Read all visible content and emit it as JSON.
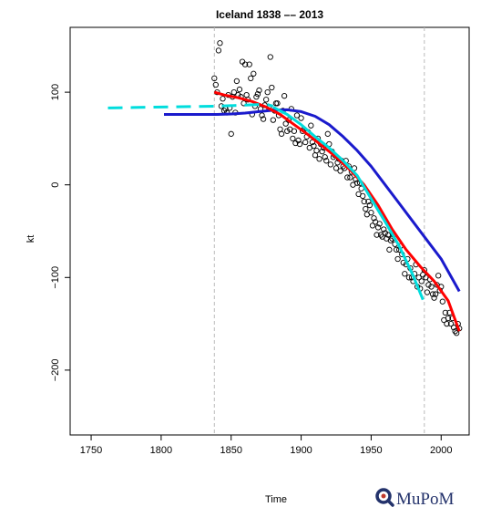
{
  "chart_data": {
    "type": "scatter",
    "title": "Iceland 1838 –– 2013",
    "xlabel": "Time",
    "ylabel": "kt",
    "xlim": [
      1735,
      2020
    ],
    "ylim": [
      -270,
      170
    ],
    "x_ticks": [
      1750,
      1800,
      1850,
      1900,
      1950,
      2000
    ],
    "y_ticks": [
      100,
      0,
      -100,
      -200
    ],
    "grid": false,
    "vlines": [
      1838,
      1988
    ],
    "series": [
      {
        "kind": "points",
        "color": "#000000",
        "x": [
          1838,
          1839,
          1840,
          1841,
          1842,
          1843,
          1844,
          1845,
          1846,
          1847,
          1848,
          1849,
          1850,
          1851,
          1852,
          1853,
          1854,
          1855,
          1856,
          1857,
          1858,
          1859,
          1860,
          1861,
          1862,
          1863,
          1864,
          1865,
          1866,
          1867,
          1868,
          1869,
          1870,
          1871,
          1872,
          1873,
          1874,
          1875,
          1876,
          1877,
          1878,
          1879,
          1880,
          1881,
          1882,
          1883,
          1884,
          1885,
          1886,
          1887,
          1888,
          1889,
          1890,
          1891,
          1892,
          1893,
          1894,
          1895,
          1896,
          1897,
          1898,
          1899,
          1900,
          1901,
          1902,
          1903,
          1904,
          1905,
          1906,
          1907,
          1908,
          1909,
          1910,
          1911,
          1912,
          1913,
          1914,
          1915,
          1916,
          1917,
          1918,
          1919,
          1920,
          1921,
          1922,
          1923,
          1924,
          1925,
          1926,
          1927,
          1928,
          1929,
          1930,
          1931,
          1932,
          1933,
          1934,
          1935,
          1936,
          1937,
          1938,
          1939,
          1940,
          1941,
          1942,
          1943,
          1944,
          1945,
          1946,
          1947,
          1948,
          1949,
          1950,
          1951,
          1952,
          1953,
          1954,
          1955,
          1956,
          1957,
          1958,
          1959,
          1960,
          1961,
          1962,
          1963,
          1964,
          1965,
          1966,
          1967,
          1968,
          1969,
          1970,
          1971,
          1972,
          1973,
          1974,
          1975,
          1976,
          1977,
          1978,
          1979,
          1980,
          1981,
          1982,
          1983,
          1984,
          1985,
          1986,
          1987,
          1988,
          1989,
          1990,
          1991,
          1992,
          1993,
          1994,
          1995,
          1996,
          1997,
          1998,
          1999,
          2000,
          2001,
          2002,
          2003,
          2004,
          2005,
          2006,
          2007,
          2008,
          2009,
          2010,
          2011,
          2012,
          2013
        ],
        "y": [
          115,
          108,
          100,
          145,
          153,
          85,
          93,
          80,
          82,
          78,
          97,
          83,
          55,
          95,
          100,
          78,
          112,
          97,
          103,
          95,
          133,
          88,
          130,
          97,
          92,
          130,
          115,
          76,
          120,
          85,
          95,
          98,
          102,
          82,
          75,
          71,
          86,
          92,
          100,
          83,
          138,
          105,
          70,
          80,
          88,
          88,
          75,
          60,
          55,
          80,
          96,
          66,
          58,
          70,
          60,
          82,
          50,
          58,
          45,
          75,
          48,
          44,
          72,
          58,
          60,
          46,
          52,
          57,
          40,
          64,
          46,
          42,
          32,
          37,
          50,
          28,
          44,
          36,
          40,
          30,
          26,
          55,
          44,
          22,
          36,
          30,
          32,
          18,
          24,
          28,
          15,
          26,
          20,
          18,
          26,
          8,
          20,
          8,
          14,
          0,
          18,
          6,
          2,
          -10,
          2,
          -4,
          -12,
          -18,
          -26,
          -32,
          -18,
          -22,
          -30,
          -44,
          -36,
          -40,
          -54,
          -46,
          -42,
          -54,
          -56,
          -48,
          -52,
          -58,
          -54,
          -70,
          -60,
          -58,
          -54,
          -64,
          -70,
          -80,
          -70,
          -66,
          -75,
          -84,
          -96,
          -86,
          -80,
          -100,
          -90,
          -100,
          -104,
          -96,
          -86,
          -110,
          -100,
          -112,
          -104,
          -97,
          -92,
          -100,
          -116,
          -108,
          -102,
          -110,
          -118,
          -122,
          -118,
          -108,
          -98,
          -114,
          -110,
          -126,
          -146,
          -138,
          -150,
          -144,
          -138,
          -150,
          -144,
          -154,
          -158,
          -160,
          -150,
          -155
        ]
      },
      {
        "kind": "line",
        "color": "#1a1acc",
        "x": [
          1802,
          1810,
          1820,
          1830,
          1840,
          1850,
          1860,
          1870,
          1880,
          1890,
          1900,
          1910,
          1920,
          1930,
          1940,
          1950,
          1960,
          1970,
          1980,
          1990,
          2000,
          2013
        ],
        "y": [
          76,
          76,
          76,
          76,
          76,
          76.5,
          77.5,
          79,
          80.5,
          81,
          79,
          74,
          65,
          52,
          37,
          20,
          0,
          -20,
          -40,
          -60,
          -80,
          -115
        ]
      },
      {
        "kind": "line",
        "color": "#ff0000",
        "x": [
          1838,
          1845,
          1855,
          1865,
          1875,
          1885,
          1895,
          1905,
          1915,
          1925,
          1935,
          1945,
          1955,
          1965,
          1975,
          1985,
          1995,
          2005,
          2013
        ],
        "y": [
          100,
          97,
          94,
          90,
          84,
          76,
          65,
          54,
          42,
          30,
          16,
          0,
          -22,
          -48,
          -70,
          -88,
          -104,
          -125,
          -158
        ]
      },
      {
        "kind": "line",
        "color": "#00dddd",
        "x": [
          1880,
          1890,
          1900,
          1910,
          1920,
          1930,
          1940,
          1950,
          1960,
          1970,
          1980,
          1987
        ],
        "y": [
          84,
          76,
          65,
          52,
          40,
          26,
          10,
          -15,
          -40,
          -66,
          -98,
          -124
        ]
      },
      {
        "kind": "dashed-line",
        "color": "#00dddd",
        "x": [
          1762,
          1780,
          1800,
          1820,
          1840,
          1860,
          1875,
          1880
        ],
        "y": [
          83,
          83.5,
          84,
          84.5,
          85,
          86,
          87,
          85
        ]
      }
    ]
  },
  "logo": {
    "text": "MuPoM"
  }
}
